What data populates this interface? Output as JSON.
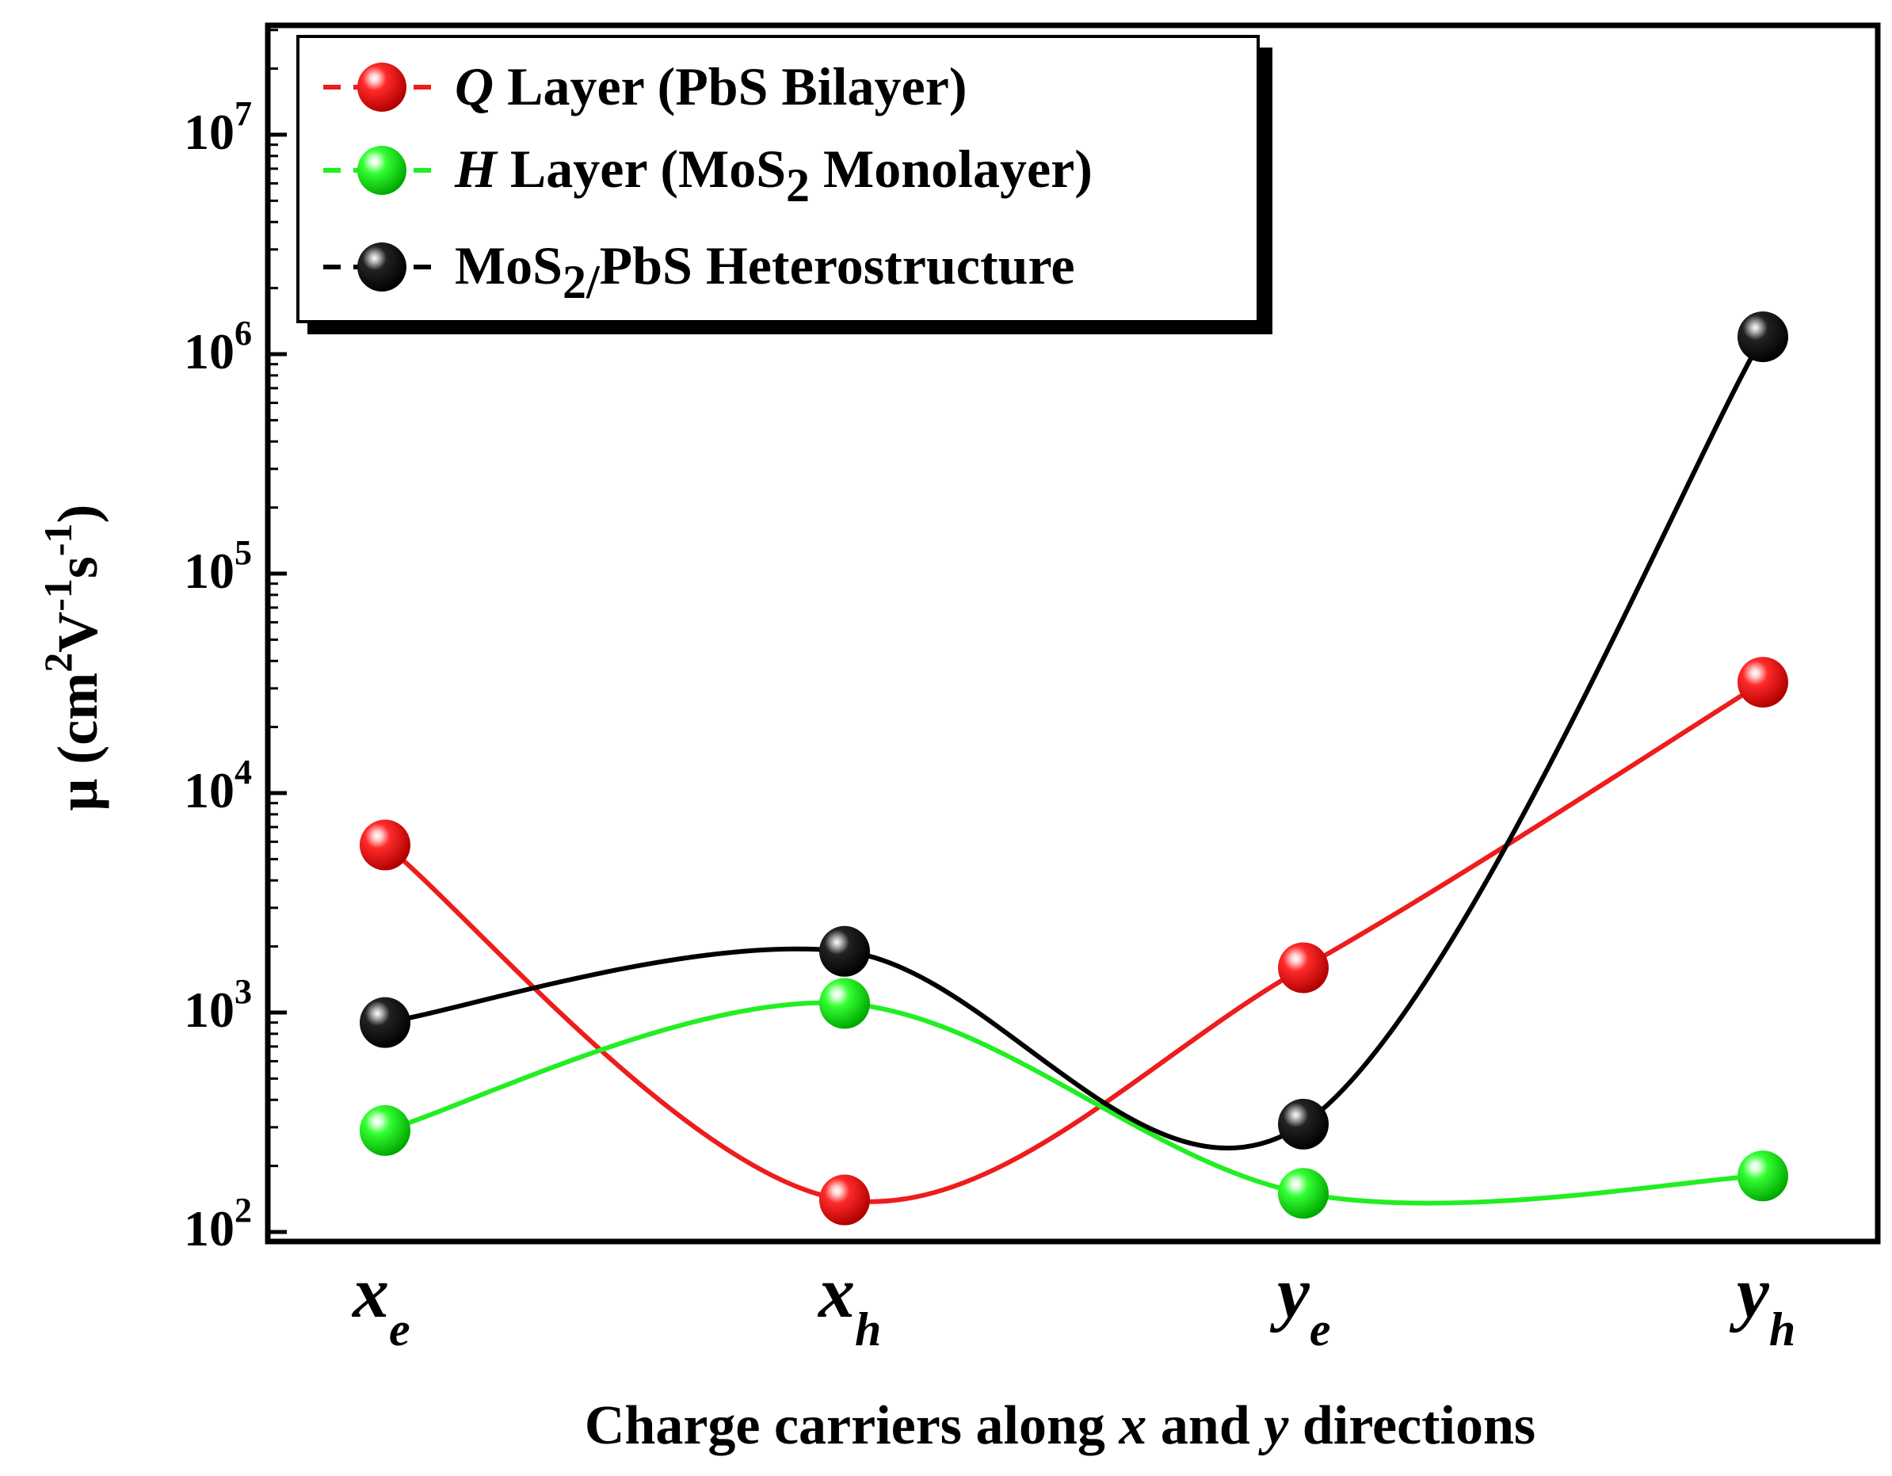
{
  "chart_data": {
    "type": "line",
    "title": "",
    "xlabel": {
      "prefix": "Charge carriers along ",
      "var1": "x",
      "middle": " and ",
      "var2": "y",
      "suffix": " directions"
    },
    "ylabel": {
      "symbol": "μ",
      "unit_open": "(cm",
      "sup1": "2",
      "unit_v": "V",
      "sup2": "-1",
      "unit_s": "s",
      "sup3": "-1",
      "unit_close": ")"
    },
    "yscale": "log",
    "ylim": [
      90,
      30000000
    ],
    "yticks": [
      {
        "base": "10",
        "exp": "2",
        "value": 100
      },
      {
        "base": "10",
        "exp": "3",
        "value": 1000
      },
      {
        "base": "10",
        "exp": "4",
        "value": 10000
      },
      {
        "base": "10",
        "exp": "5",
        "value": 100000
      },
      {
        "base": "10",
        "exp": "6",
        "value": 1000000
      },
      {
        "base": "10",
        "exp": "7",
        "value": 10000000
      }
    ],
    "categories": [
      {
        "main": "x",
        "sub": "e"
      },
      {
        "main": "x",
        "sub": "h"
      },
      {
        "main": "y",
        "sub": "e"
      },
      {
        "main": "y",
        "sub": "h"
      }
    ],
    "series": [
      {
        "key": "q",
        "legend": {
          "italic": "Q",
          "rest": " Layer (PbS Bilayer)"
        },
        "color": "#ee1c1c",
        "values": [
          5800,
          140,
          1600,
          32000
        ]
      },
      {
        "key": "h",
        "legend": {
          "italic": "H",
          "rest": " Layer (MoS",
          "sub": "2",
          "rest2": " Monolayer)"
        },
        "color": "#22ee22",
        "values": [
          290,
          1100,
          150,
          180
        ]
      },
      {
        "key": "het",
        "legend": {
          "text": "MoS",
          "sub": "2/",
          "rest": "PbS Heterostructure"
        },
        "color": "#000000",
        "values": [
          900,
          1900,
          310,
          1200000
        ]
      }
    ],
    "legend_position": "top-left",
    "grid": false
  }
}
